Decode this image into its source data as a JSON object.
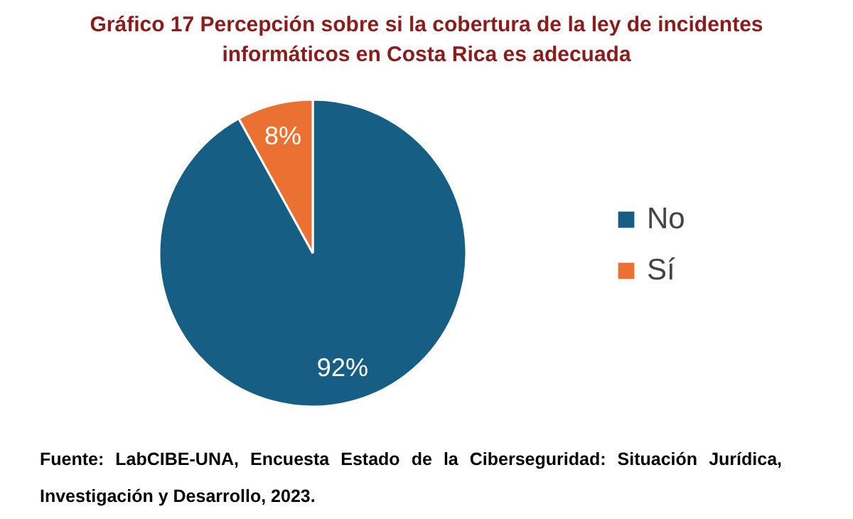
{
  "chart_data": {
    "type": "pie",
    "title": "Gráfico 17 Percepción sobre si la cobertura de la ley de incidentes informáticos en Costa Rica es adecuada",
    "categories": [
      "No",
      "Sí"
    ],
    "values": [
      92,
      8
    ],
    "colors": [
      "#175e84",
      "#ea7131"
    ],
    "value_labels": [
      "92%",
      "8%"
    ],
    "legend": "right",
    "annotations": [
      "Fuente: LabCIBE-UNA, Encuesta Estado de la Ciberseguridad: Situación Jurídica, Investigación y Desarrollo, 2023."
    ]
  }
}
